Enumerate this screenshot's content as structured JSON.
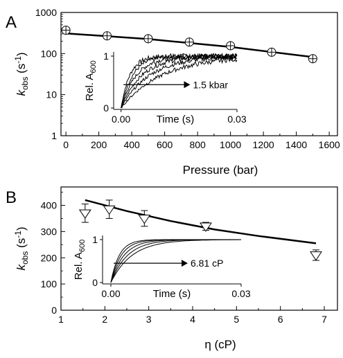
{
  "chart_data": [
    {
      "panel_label": "A",
      "type": "scatter",
      "xlabel": "Pressure (bar)",
      "ylabel": "kobs (s-1)",
      "ylabel_main": "k",
      "ylabel_sub": "obs",
      "ylabel_rest": " (s",
      "ylabel_sup": "-1",
      "ylabel_close": ")",
      "yscale": "log",
      "xlim": [
        -30,
        1650
      ],
      "ylim": [
        1,
        1000
      ],
      "x_ticks": [
        0,
        200,
        400,
        600,
        800,
        1000,
        1200,
        1400,
        1600
      ],
      "x_tick_labels": [
        "0",
        "200",
        "400",
        "600",
        "800",
        "1000",
        "1200",
        "1400",
        "1600"
      ],
      "y_ticks": [
        1,
        10,
        100,
        1000
      ],
      "y_tick_labels": [
        "1",
        "10",
        "100",
        "1000"
      ],
      "marker": "circle-crosshair",
      "points": [
        {
          "x": 0,
          "y": 370
        },
        {
          "x": 250,
          "y": 270
        },
        {
          "x": 500,
          "y": 230
        },
        {
          "x": 750,
          "y": 190
        },
        {
          "x": 1000,
          "y": 155
        },
        {
          "x": 1250,
          "y": 108
        },
        {
          "x": 1500,
          "y": 75
        }
      ],
      "fit_line": [
        {
          "x": 0,
          "y": 310
        },
        {
          "x": 500,
          "y": 225
        },
        {
          "x": 1000,
          "y": 145
        },
        {
          "x": 1500,
          "y": 82
        }
      ],
      "inset": {
        "xlabel": "Time (s)",
        "ylabel_main": "Rel. A",
        "ylabel_sub": "600",
        "x_tick_labels": [
          "0.00",
          "0.03"
        ],
        "y_tick_labels": [
          "0",
          "1"
        ],
        "xlim": [
          0,
          0.03
        ],
        "ylim": [
          0,
          1
        ],
        "traces": [
          {
            "k": 440,
            "noise": 0.035
          },
          {
            "k": 330,
            "noise": 0.035
          },
          {
            "k": 250,
            "noise": 0.035
          },
          {
            "k": 185,
            "noise": 0.035
          },
          {
            "k": 135,
            "noise": 0.035
          },
          {
            "k": 95,
            "noise": 0.035
          }
        ],
        "annotation": "1.5 kbar"
      }
    },
    {
      "panel_label": "B",
      "type": "scatter",
      "xlabel": "η (cP)",
      "ylabel_main": "k",
      "ylabel_sub": "obs",
      "ylabel_rest": " (s",
      "ylabel_sup": "-1",
      "ylabel_close": ")",
      "xlim": [
        1,
        7.3
      ],
      "ylim": [
        0,
        470
      ],
      "x_ticks": [
        1,
        2,
        3,
        4,
        5,
        6,
        7
      ],
      "x_tick_labels": [
        "1",
        "2",
        "3",
        "4",
        "5",
        "6",
        "7"
      ],
      "y_ticks": [
        0,
        100,
        200,
        300,
        400
      ],
      "y_tick_labels": [
        "0",
        "100",
        "200",
        "300",
        "400"
      ],
      "marker": "triangle-down",
      "points": [
        {
          "x": 1.55,
          "y": 370,
          "err": 35
        },
        {
          "x": 2.1,
          "y": 385,
          "err": 35
        },
        {
          "x": 2.9,
          "y": 350,
          "err": 30
        },
        {
          "x": 4.3,
          "y": 320,
          "err": 15
        },
        {
          "x": 6.81,
          "y": 210,
          "err": 20
        }
      ],
      "fit_line": [
        {
          "x": 1.55,
          "y": 420
        },
        {
          "x": 2.5,
          "y": 378
        },
        {
          "x": 3.5,
          "y": 340
        },
        {
          "x": 4.5,
          "y": 308
        },
        {
          "x": 5.5,
          "y": 283
        },
        {
          "x": 6.81,
          "y": 255
        }
      ],
      "inset": {
        "xlabel": "Time (s)",
        "ylabel_main": "Rel. A",
        "ylabel_sub": "600",
        "x_tick_labels": [
          "0.00",
          "0.03"
        ],
        "y_tick_labels": [
          "0",
          "1"
        ],
        "xlim": [
          0,
          0.03
        ],
        "ylim": [
          0,
          1
        ],
        "traces": [
          {
            "k": 520,
            "noise": 0
          },
          {
            "k": 420,
            "noise": 0
          },
          {
            "k": 330,
            "noise": 0
          },
          {
            "k": 260,
            "noise": 0
          },
          {
            "k": 205,
            "noise": 0
          }
        ],
        "annotation": "6.81 cP"
      }
    }
  ]
}
